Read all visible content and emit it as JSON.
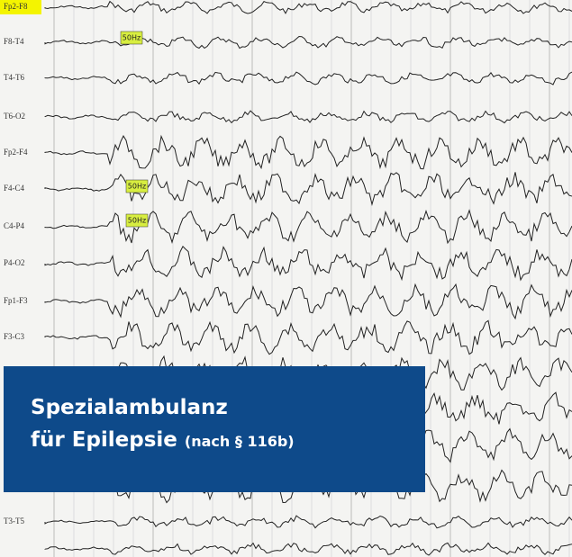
{
  "eeg": {
    "channels": [
      "Fp2-F8",
      "F8-T4",
      "T4-T6",
      "T6-O2",
      "Fp2-F4",
      "F4-C4",
      "C4-P4",
      "P4-O2",
      "Fp1-F3",
      "F3-C3",
      "T3-T5"
    ],
    "badges": [
      "50Hz",
      "50Hz",
      "50Hz"
    ]
  },
  "overlay": {
    "line1": "Spezialambulanz",
    "line2": "für Epilepsie",
    "note": "(nach § 116b)"
  }
}
